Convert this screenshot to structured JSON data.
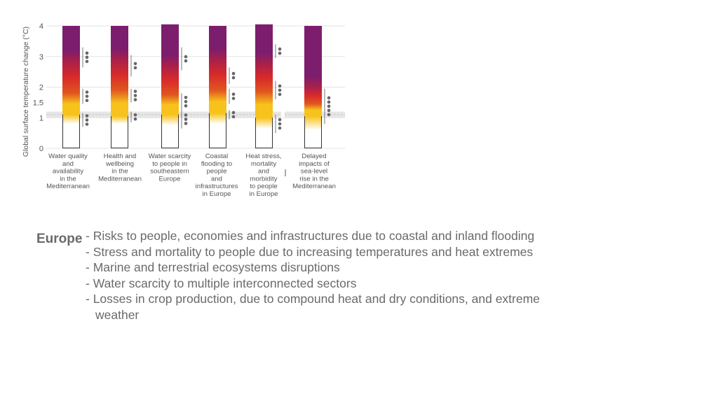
{
  "chart_data": {
    "type": "bar",
    "title": "",
    "ylabel": "Global surface temperature change (°C)",
    "xlabel": "",
    "ylim": [
      0,
      4.2
    ],
    "yticks": [
      {
        "value": 0,
        "label": "0"
      },
      {
        "value": 1,
        "label": "1"
      },
      {
        "value": 1.5,
        "label": "1.5"
      },
      {
        "value": 2,
        "label": "2"
      },
      {
        "value": 3,
        "label": "3"
      },
      {
        "value": 4,
        "label": "4"
      }
    ],
    "grid": true,
    "recent_warming_band": [
      1.0,
      1.2
    ],
    "risk_colors": {
      "undetectable": "#ffffff",
      "moderate": "#f7c21b",
      "high": "#d82a2a",
      "very_high": "#7d1d6d"
    },
    "categories": [
      {
        "label_lines": [
          "Water quality",
          "and",
          "availability",
          "in the",
          "Mediterranean"
        ],
        "base": 0.8,
        "transitions": [
          1.1,
          1.8,
          2.85
        ],
        "top": 4.0,
        "confidence_groups": [
          {
            "from": 3.3,
            "to": 2.65,
            "dots": 3
          },
          {
            "from": 1.95,
            "to": 1.45,
            "dots": 3
          },
          {
            "from": 1.15,
            "to": 0.7,
            "dots": 3
          }
        ]
      },
      {
        "label_lines": [
          "Health and",
          "wellbeing",
          "in the",
          "Mediterranean"
        ],
        "base": 0.8,
        "transitions": [
          1.05,
          1.9,
          2.9
        ],
        "top": 4.0,
        "confidence_groups": [
          {
            "from": 3.05,
            "to": 2.35,
            "dots": 2
          },
          {
            "from": 1.95,
            "to": 1.5,
            "dots": 3
          },
          {
            "from": 1.2,
            "to": 0.85,
            "dots": 2
          }
        ]
      },
      {
        "label_lines": [
          "Water scarcity",
          "to people in",
          "southeastern",
          "Europe"
        ],
        "base": 0.75,
        "transitions": [
          1.1,
          1.75,
          2.7
        ],
        "top": 4.05,
        "confidence_groups": [
          {
            "from": 3.3,
            "to": 2.55,
            "dots": 2
          },
          {
            "from": 1.8,
            "to": 1.25,
            "dots": 3
          },
          {
            "from": 1.25,
            "to": 0.65,
            "dots": 3
          }
        ]
      },
      {
        "label_lines": [
          "Coastal",
          "flooding to",
          "people",
          "and",
          "infrastructures",
          "in Europe"
        ],
        "base": 0.8,
        "transitions": [
          1.15,
          1.9,
          2.9
        ],
        "top": 4.0,
        "confidence_groups": [
          {
            "from": 2.65,
            "to": 2.1,
            "dots": 2
          },
          {
            "from": 1.95,
            "to": 1.45,
            "dots": 2
          },
          {
            "from": 1.25,
            "to": 0.95,
            "dots": 2
          }
        ]
      },
      {
        "label_lines": [
          "Heat stress,",
          "mortality",
          "and",
          "morbidity",
          "to people",
          "in Europe"
        ],
        "base": 0.65,
        "transitions": [
          1.0,
          1.85,
          2.75
        ],
        "top": 4.05,
        "confidence_groups": [
          {
            "from": 3.4,
            "to": 2.95,
            "dots": 2
          },
          {
            "from": 2.2,
            "to": 1.6,
            "dots": 3
          },
          {
            "from": 1.1,
            "to": 0.5,
            "dots": 3
          }
        ]
      },
      {
        "label_lines": [
          "Delayed",
          "impacts of",
          "sea-level",
          "rise in the",
          "Mediterranean"
        ],
        "base": 0.6,
        "transitions": [
          1.05,
          1.45,
          2.0
        ],
        "top": 4.0,
        "confidence_groups": [
          {
            "from": 1.95,
            "to": 0.8,
            "dots": 5
          }
        ]
      }
    ]
  },
  "europe_panel": {
    "title": "Europe",
    "risks": [
      "Risks to people, economies and infrastructures due to coastal and inland flooding",
      "Stress and mortality to people due to increasing temperatures and heat extremes",
      "Marine and terrestrial ecosystems disruptions",
      "Water scarcity to multiple interconnected sectors",
      "Losses in crop production, due to compound heat and dry conditions, and extreme weather"
    ]
  }
}
